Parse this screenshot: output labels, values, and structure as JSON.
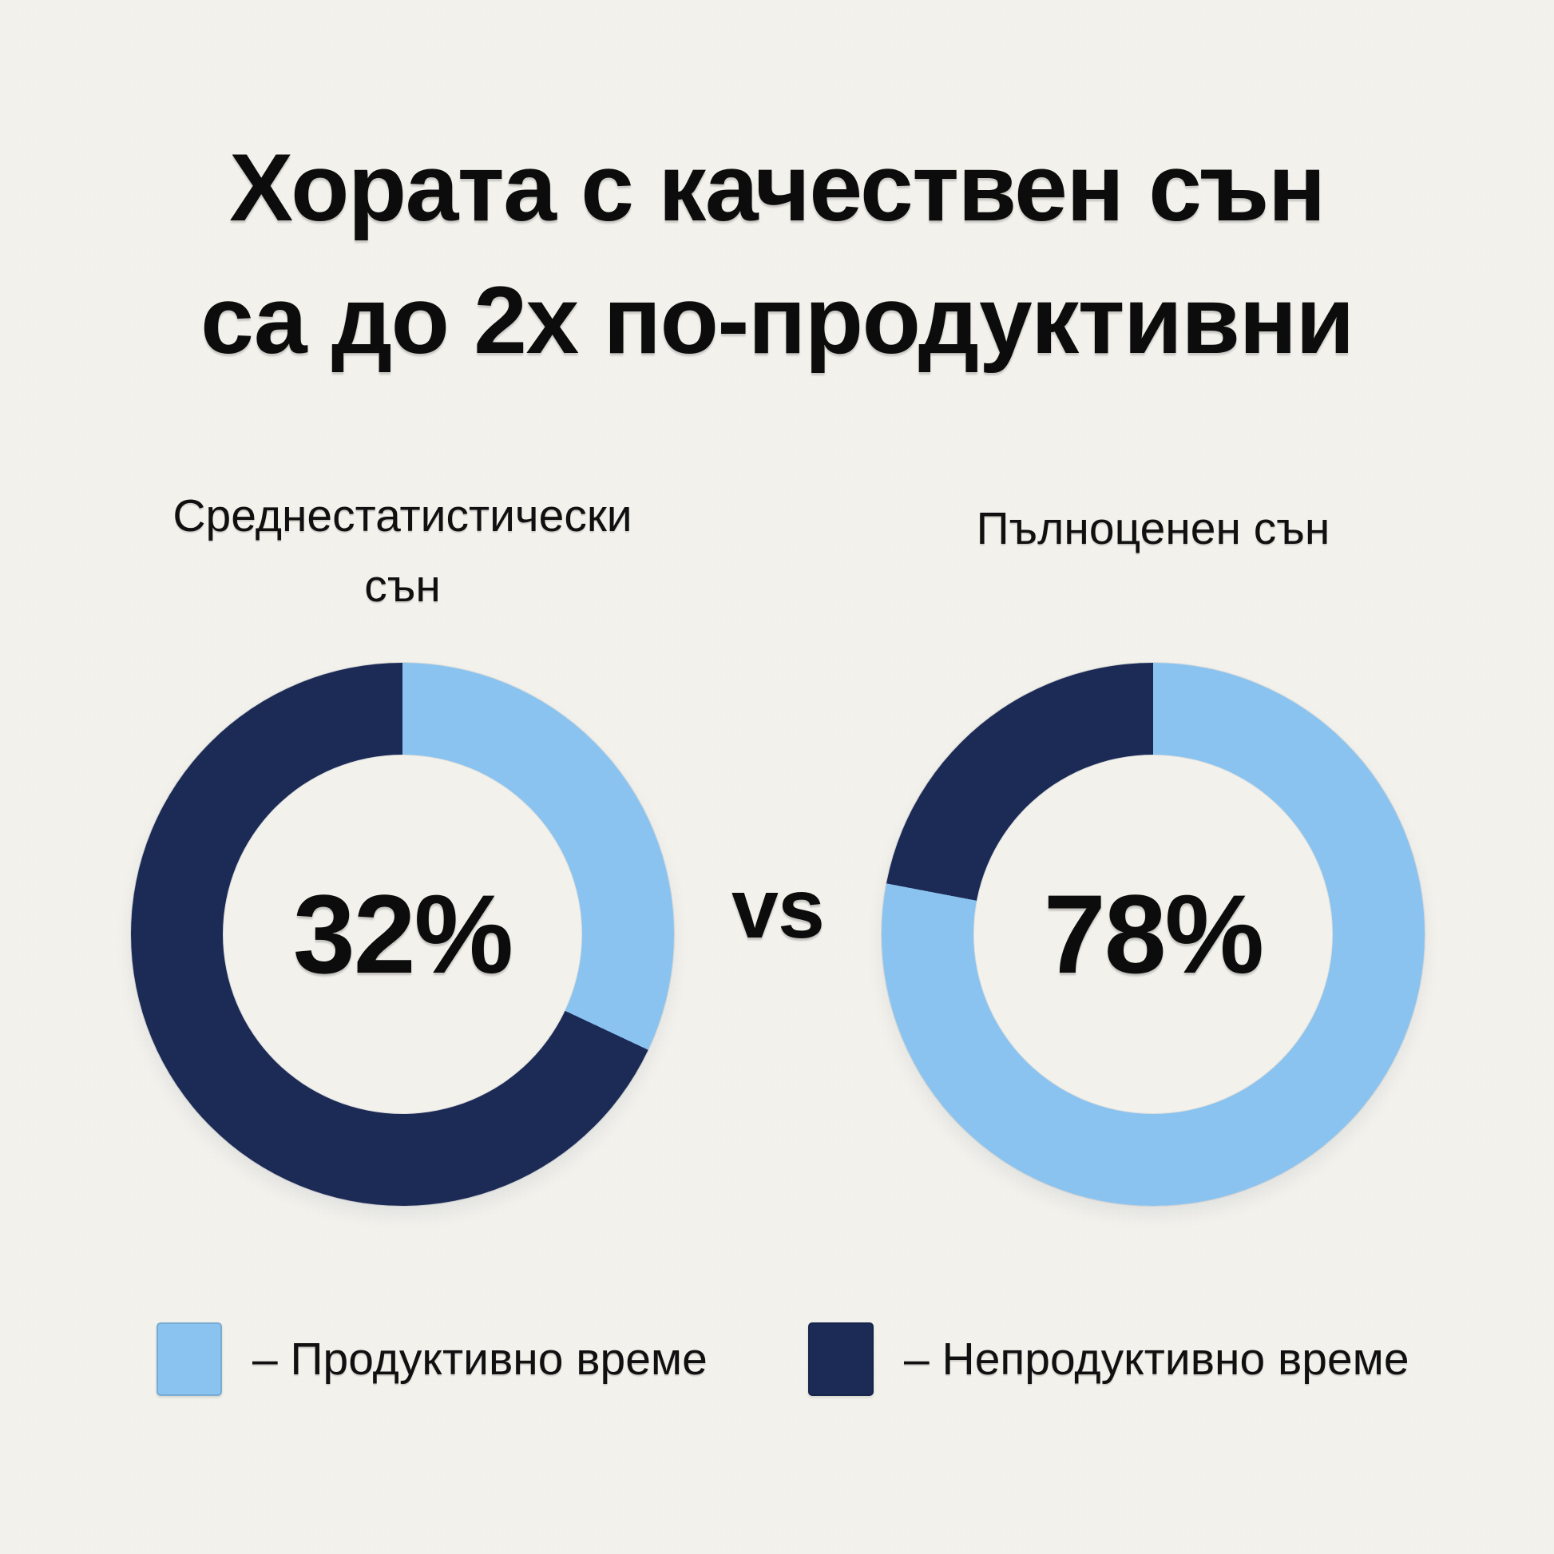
{
  "background_color": "#f2f1ec",
  "title": {
    "line1": "Хората с качествен сън",
    "line2": "са до 2х по-продуктивни"
  },
  "vs_label": "vs",
  "chart_data": {
    "type": "pie",
    "variant": "two-donut-comparison",
    "unit": "%",
    "legend_position": "bottom",
    "colors": {
      "productive": "#8AC3EF",
      "unproductive": "#1C2B56",
      "background": "#f2f1ec",
      "text": "#0c0c0c"
    },
    "charts": [
      {
        "label": "Среднестатистически\nсън",
        "value": 32,
        "value_label": "32%",
        "segments": [
          {
            "name": "Продуктивно време",
            "value": 32,
            "color": "#8AC3EF"
          },
          {
            "name": "Непродуктивно време",
            "value": 68,
            "color": "#1C2B56"
          }
        ]
      },
      {
        "label": "Пълноценен сън",
        "value": 78,
        "value_label": "78%",
        "segments": [
          {
            "name": "Продуктивно време",
            "value": 78,
            "color": "#8AC3EF"
          },
          {
            "name": "Непродуктивно време",
            "value": 22,
            "color": "#1C2B56"
          }
        ]
      }
    ],
    "legend": [
      {
        "swatch_color": "#8AC3EF",
        "label": "– Продуктивно време"
      },
      {
        "swatch_color": "#1C2B56",
        "label": "– Непродуктивно време"
      }
    ]
  }
}
